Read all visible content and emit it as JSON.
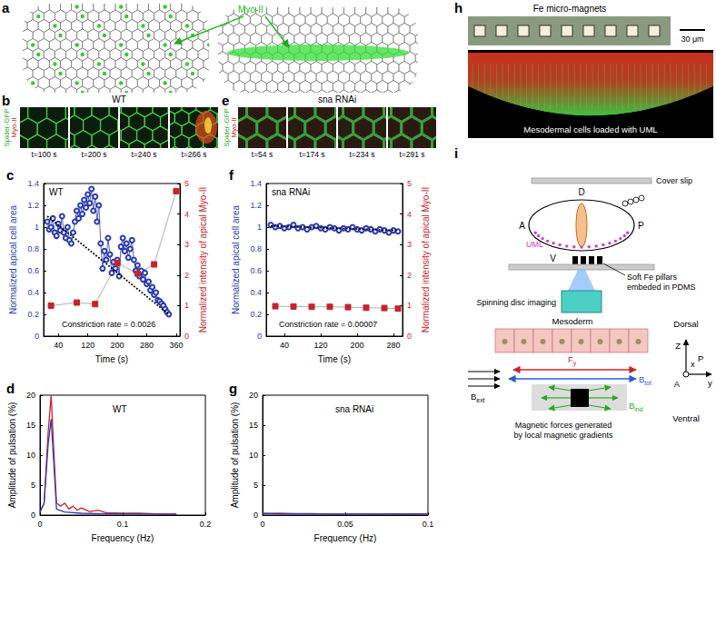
{
  "chart_data": [
    {
      "type": "line",
      "title": "c",
      "xlabel": "Time (s)",
      "ylabel": "Normalized apical cell area",
      "y2label": "Normalized intensity of apical Myo-II",
      "annotations": [
        "WT",
        "Constriction rate = 0.0026"
      ],
      "xlim": [
        0,
        370
      ],
      "xticks": [
        40,
        120,
        200,
        280,
        360
      ],
      "ylim": [
        0,
        1.4
      ],
      "yticks": [
        0,
        0.2,
        0.4,
        0.6,
        0.8,
        1,
        1.2,
        1.4
      ],
      "y2lim": [
        0,
        5
      ],
      "y2ticks": [
        0,
        1,
        2,
        3,
        4,
        5
      ],
      "grid": false,
      "series": [
        {
          "color": "#2b3bb0",
          "marker": "circle",
          "x": [
            10,
            15,
            20,
            25,
            30,
            35,
            40,
            45,
            50,
            55,
            60,
            65,
            70,
            75,
            80,
            85,
            90,
            95,
            100,
            105,
            110,
            115,
            120,
            125,
            130,
            135,
            140,
            145,
            150,
            155,
            160,
            165,
            170,
            175,
            180,
            185,
            190,
            195,
            200,
            205,
            210,
            215,
            220,
            225,
            230,
            235,
            240,
            245,
            250,
            255,
            260,
            265,
            270,
            275,
            280,
            285,
            290,
            295,
            300,
            305,
            310,
            315,
            320,
            325,
            330,
            335,
            340
          ],
          "values": [
            1.05,
            0.98,
            1.0,
            1.08,
            0.95,
            0.92,
            1.03,
            0.97,
            1.1,
            0.95,
            0.9,
            1.0,
            0.88,
            0.85,
            0.95,
            1.05,
            1.15,
            1.08,
            1.2,
            1.12,
            1.25,
            1.18,
            1.3,
            1.22,
            1.35,
            1.15,
            1.28,
            1.05,
            1.2,
            0.85,
            0.62,
            0.78,
            0.7,
            0.9,
            0.75,
            0.58,
            0.68,
            0.62,
            0.7,
            0.55,
            0.82,
            0.9,
            0.78,
            0.85,
            0.72,
            0.8,
            0.88,
            0.7,
            0.6,
            0.65,
            0.55,
            0.6,
            0.52,
            0.58,
            0.48,
            0.5,
            0.42,
            0.45,
            0.38,
            0.4,
            0.33,
            0.32,
            0.3,
            0.28,
            0.25,
            0.22,
            0.2
          ]
        },
        {
          "color": "#000000",
          "line_style": "dotted",
          "x": [
            10,
            340
          ],
          "values": [
            1.1,
            0.2
          ]
        },
        {
          "color": "#c8222a",
          "marker": "square",
          "axis": "y2",
          "x": [
            20,
            90,
            140,
            200,
            255,
            300,
            360
          ],
          "values": [
            1.0,
            1.1,
            1.05,
            2.4,
            2.05,
            2.35,
            4.75
          ]
        }
      ]
    },
    {
      "type": "line",
      "title": "f",
      "xlabel": "Time (s)",
      "ylabel": "Normalized apical cell area",
      "y2label": "Normalized intensity of apical Myo-II",
      "annotations": [
        "sna RNAi",
        "Constriction rate = 0.00007"
      ],
      "xlim": [
        0,
        300
      ],
      "xticks": [
        40,
        120,
        200,
        280
      ],
      "ylim": [
        0,
        1.4
      ],
      "yticks": [
        0,
        0.2,
        0.4,
        0.6,
        0.8,
        1,
        1.2,
        1.4
      ],
      "y2lim": [
        0,
        5
      ],
      "y2ticks": [
        0,
        1,
        2,
        3,
        4,
        5
      ],
      "grid": false,
      "series": [
        {
          "color": "#2b3bb0",
          "marker": "circle",
          "x": [
            10,
            20,
            30,
            40,
            50,
            60,
            70,
            80,
            90,
            100,
            110,
            120,
            130,
            140,
            150,
            160,
            170,
            180,
            190,
            200,
            210,
            220,
            230,
            240,
            250,
            260,
            270,
            280,
            290
          ],
          "values": [
            1.02,
            1.0,
            1.01,
            0.99,
            1.0,
            1.02,
            0.99,
            1.0,
            0.98,
            1.0,
            1.01,
            0.99,
            0.98,
            1.0,
            0.99,
            0.97,
            0.99,
            0.98,
            1.0,
            0.98,
            0.97,
            0.99,
            0.98,
            0.96,
            0.98,
            0.97,
            0.95,
            0.97,
            0.96
          ]
        },
        {
          "color": "#000000",
          "line_style": "dotted",
          "x": [
            10,
            290
          ],
          "values": [
            1.01,
            0.97
          ]
        },
        {
          "color": "#c8222a",
          "marker": "square",
          "axis": "y2",
          "x": [
            20,
            60,
            100,
            140,
            180,
            220,
            260,
            290
          ],
          "values": [
            0.98,
            0.97,
            0.96,
            0.96,
            0.95,
            0.93,
            0.92,
            0.9
          ]
        }
      ]
    },
    {
      "type": "line",
      "title": "d",
      "xlabel": "Frequency (Hz)",
      "ylabel": "Amplitude of pulsation (%)",
      "annotations": [
        "WT"
      ],
      "xlim": [
        0,
        0.2
      ],
      "xticks": [
        0,
        0.1,
        0.2
      ],
      "ylim": [
        0,
        20
      ],
      "yticks": [
        0,
        5,
        10,
        15,
        20
      ],
      "grid": false,
      "series": [
        {
          "color": "#c8222a",
          "x": [
            0,
            0.005,
            0.01,
            0.0135,
            0.017,
            0.02,
            0.025,
            0.03,
            0.035,
            0.04,
            0.045,
            0.05,
            0.06,
            0.07,
            0.08,
            0.1,
            0.12,
            0.14,
            0.165
          ],
          "values": [
            0.5,
            2,
            14,
            20,
            10,
            2,
            1.5,
            2,
            1,
            1.5,
            0.8,
            1.2,
            0.6,
            0.8,
            0.4,
            0.3,
            0.3,
            0.2,
            0.2
          ]
        },
        {
          "color": "#2b3bb0",
          "x": [
            0,
            0.005,
            0.01,
            0.0135,
            0.017,
            0.02,
            0.03,
            0.05,
            0.08,
            0.12,
            0.165
          ],
          "values": [
            0.5,
            2,
            12,
            16,
            8,
            1,
            0.5,
            0.3,
            0.2,
            0.2,
            0.1
          ]
        }
      ]
    },
    {
      "type": "line",
      "title": "g",
      "xlabel": "Frequency (Hz)",
      "ylabel": "Amplitude of pulsation (%)",
      "annotations": [
        "sna RNAi"
      ],
      "xlim": [
        0,
        0.1
      ],
      "xticks": [
        0,
        0.05,
        0.1
      ],
      "ylim": [
        0,
        20
      ],
      "yticks": [
        0,
        5,
        10,
        15,
        20
      ],
      "grid": false,
      "series": [
        {
          "color": "#c8222a",
          "x": [
            0,
            0.01,
            0.02,
            0.03,
            0.04,
            0.05,
            0.06,
            0.07,
            0.08,
            0.09,
            0.1
          ],
          "values": [
            0.2,
            0.3,
            0.2,
            0.25,
            0.15,
            0.2,
            0.2,
            0.2,
            0.15,
            0.2,
            0.15
          ]
        },
        {
          "color": "#2b3bb0",
          "x": [
            0,
            0.01,
            0.02,
            0.03,
            0.04,
            0.05,
            0.06,
            0.07,
            0.08,
            0.09,
            0.1
          ],
          "values": [
            0.3,
            0.2,
            0.25,
            0.2,
            0.2,
            0.15,
            0.2,
            0.15,
            0.2,
            0.15,
            0.2
          ]
        }
      ]
    }
  ],
  "figure": {
    "a": {
      "label": "a",
      "marker": "Myo-II"
    },
    "b": {
      "label": "b",
      "title": "WT",
      "channels": [
        "Spider-GFP",
        "Myo-II"
      ],
      "times": [
        "t=100 s",
        "t=200 s",
        "t=240 s",
        "t=266 s"
      ]
    },
    "e": {
      "label": "e",
      "title": "sna RNAi",
      "channels": [
        "Spider-GFP",
        "Myo-II"
      ],
      "times": [
        "t=54 s",
        "t=174 s",
        "t=234 s",
        "t=291 s"
      ]
    },
    "h": {
      "label": "h",
      "title": "Fe micro-magnets",
      "scale": "30 μm",
      "caption": "Mesodermal cells loaded with UML"
    },
    "i": {
      "label": "i",
      "embryo_axes": {
        "dorsal": "D",
        "anterior": "A",
        "posterior": "P",
        "ventral": "V"
      },
      "cover_slip": "Cover slip",
      "uml": "UML",
      "pillars": [
        "Soft Fe pillars",
        "embeded in PDMS"
      ],
      "imaging": "Spinning disc imaging",
      "tissue": "Mesoderm",
      "forces": {
        "ext": {
          "main": "B",
          "sub": "ext"
        },
        "force": {
          "main": "F",
          "sub": "y"
        },
        "tot": {
          "main": "B",
          "sub": "tot"
        },
        "ind": {
          "main": "B",
          "sub": "ind"
        }
      },
      "axes": {
        "dorsal": "Dorsal",
        "ventral": "Ventral",
        "z": "Z",
        "x": "x",
        "p": "P",
        "a": "A",
        "y": "y"
      },
      "caption": [
        "Magnetic forces generated",
        "by local magnetic gradients"
      ]
    }
  }
}
